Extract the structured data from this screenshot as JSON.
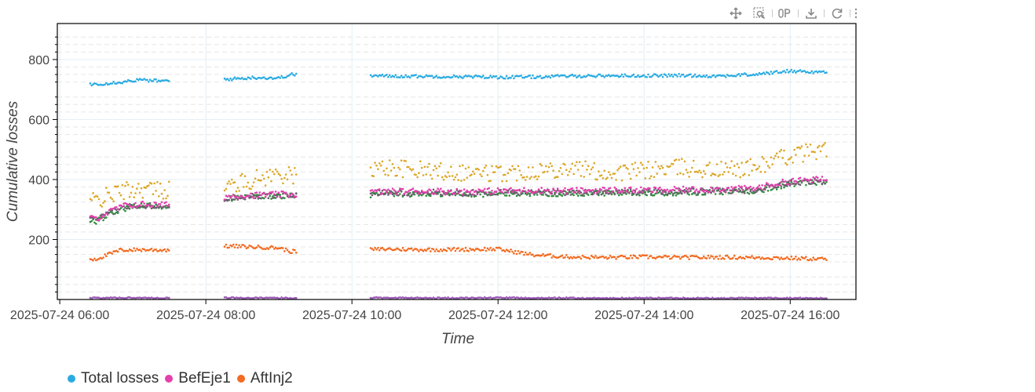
{
  "toolbar": {
    "tools": [
      {
        "icon": "pan-icon"
      },
      {
        "icon": "box-zoom-icon",
        "active": true
      },
      {
        "icon": "hover-icon"
      },
      {
        "icon": "save-icon"
      },
      {
        "icon": "reset-icon"
      },
      {
        "icon": "more-icon"
      }
    ]
  },
  "chart_data": {
    "type": "scatter",
    "xlabel": "Time",
    "ylabel": "Cumulative losses",
    "x_ticks": [
      "2025-07-24 06:00",
      "2025-07-24 08:00",
      "2025-07-24 10:00",
      "2025-07-24 12:00",
      "2025-07-24 14:00",
      "2025-07-24 16:00"
    ],
    "y_ticks": [
      200,
      400,
      600,
      800
    ],
    "xlim": [
      "2025-07-24 05:58",
      "2025-07-24 16:54"
    ],
    "ylim": [
      0,
      920
    ],
    "grid": true,
    "legend_position": "bottom-left",
    "series": [
      {
        "name": "Total losses",
        "color": "#29abe2",
        "points": [
          [
            "06:30",
            718
          ],
          [
            "06:50",
            725
          ],
          [
            "07:05",
            732
          ],
          [
            "07:25",
            728
          ],
          [
            "08:20",
            735
          ],
          [
            "08:40",
            740
          ],
          [
            "09:00",
            738
          ],
          [
            "09:10",
            750
          ],
          [
            "10:30",
            745
          ],
          [
            "11:00",
            744
          ],
          [
            "11:30",
            743
          ],
          [
            "12:00",
            741
          ],
          [
            "12:30",
            742
          ],
          [
            "13:00",
            745
          ],
          [
            "13:30",
            746
          ],
          [
            "14:00",
            746
          ],
          [
            "14:30",
            747
          ],
          [
            "15:00",
            745
          ],
          [
            "15:30",
            750
          ],
          [
            "16:00",
            762
          ],
          [
            "16:25",
            758
          ]
        ]
      },
      {
        "name": "BefEje1",
        "color": "#e43fad",
        "points": [
          [
            "06:30",
            270
          ],
          [
            "06:50",
            310
          ],
          [
            "07:05",
            318
          ],
          [
            "07:25",
            315
          ],
          [
            "08:20",
            345
          ],
          [
            "08:40",
            348
          ],
          [
            "09:00",
            350
          ],
          [
            "10:30",
            360
          ],
          [
            "11:00",
            362
          ],
          [
            "11:30",
            360
          ],
          [
            "12:00",
            362
          ],
          [
            "12:30",
            364
          ],
          [
            "13:00",
            362
          ],
          [
            "13:30",
            365
          ],
          [
            "14:00",
            364
          ],
          [
            "14:30",
            366
          ],
          [
            "15:00",
            368
          ],
          [
            "15:30",
            370
          ],
          [
            "16:00",
            395
          ],
          [
            "16:25",
            400
          ]
        ]
      },
      {
        "name": "AftInj2",
        "color": "#f26b21",
        "points": [
          [
            "06:30",
            135
          ],
          [
            "06:50",
            165
          ],
          [
            "07:05",
            166
          ],
          [
            "07:25",
            165
          ],
          [
            "08:20",
            178
          ],
          [
            "08:40",
            175
          ],
          [
            "09:00",
            172
          ],
          [
            "09:10",
            160
          ],
          [
            "10:30",
            168
          ],
          [
            "11:00",
            166
          ],
          [
            "11:30",
            167
          ],
          [
            "12:00",
            168
          ],
          [
            "12:30",
            148
          ],
          [
            "13:00",
            142
          ],
          [
            "13:30",
            140
          ],
          [
            "14:00",
            142
          ],
          [
            "14:30",
            140
          ],
          [
            "15:00",
            141
          ],
          [
            "15:30",
            140
          ],
          [
            "16:00",
            138
          ],
          [
            "16:25",
            135
          ]
        ]
      }
    ],
    "unlabeled_series": [
      {
        "color": "#dba727",
        "points": [
          [
            "06:30",
            330
          ],
          [
            "06:50",
            360
          ],
          [
            "07:05",
            370
          ],
          [
            "07:25",
            365
          ],
          [
            "08:20",
            380
          ],
          [
            "08:40",
            400
          ],
          [
            "09:00",
            420
          ],
          [
            "09:10",
            410
          ],
          [
            "10:30",
            440
          ],
          [
            "11:00",
            430
          ],
          [
            "11:30",
            425
          ],
          [
            "12:00",
            420
          ],
          [
            "12:30",
            430
          ],
          [
            "13:00",
            440
          ],
          [
            "13:30",
            420
          ],
          [
            "14:00",
            430
          ],
          [
            "14:30",
            440
          ],
          [
            "15:00",
            430
          ],
          [
            "15:30",
            440
          ],
          [
            "16:00",
            480
          ],
          [
            "16:25",
            500
          ]
        ]
      },
      {
        "color": "#2e8b3e",
        "points": [
          [
            "06:30",
            260
          ],
          [
            "06:50",
            300
          ],
          [
            "07:05",
            312
          ],
          [
            "07:25",
            310
          ],
          [
            "08:20",
            338
          ],
          [
            "08:40",
            342
          ],
          [
            "09:00",
            345
          ],
          [
            "10:30",
            350
          ],
          [
            "11:00",
            352
          ],
          [
            "11:30",
            350
          ],
          [
            "12:00",
            352
          ],
          [
            "12:30",
            354
          ],
          [
            "13:00",
            352
          ],
          [
            "13:30",
            355
          ],
          [
            "14:00",
            354
          ],
          [
            "14:30",
            356
          ],
          [
            "15:00",
            358
          ],
          [
            "15:30",
            360
          ],
          [
            "16:00",
            385
          ],
          [
            "16:25",
            392
          ]
        ]
      },
      {
        "color": "#6a5e6e",
        "points": [
          [
            "06:30",
            265
          ],
          [
            "06:50",
            305
          ],
          [
            "07:05",
            315
          ],
          [
            "07:25",
            312
          ],
          [
            "08:20",
            340
          ],
          [
            "08:40",
            345
          ],
          [
            "09:00",
            347
          ],
          [
            "10:30",
            355
          ],
          [
            "11:00",
            357
          ],
          [
            "11:30",
            355
          ],
          [
            "12:00",
            357
          ],
          [
            "12:30",
            359
          ],
          [
            "13:00",
            357
          ],
          [
            "13:30",
            360
          ],
          [
            "14:00",
            359
          ],
          [
            "14:30",
            361
          ],
          [
            "15:00",
            363
          ],
          [
            "15:30",
            365
          ],
          [
            "16:00",
            390
          ],
          [
            "16:25",
            396
          ]
        ]
      },
      {
        "color": "#9b59b6",
        "points": [
          [
            "06:30",
            5
          ],
          [
            "06:50",
            6
          ],
          [
            "07:05",
            6
          ],
          [
            "07:25",
            5
          ],
          [
            "08:20",
            6
          ],
          [
            "08:40",
            5
          ],
          [
            "09:00",
            5
          ],
          [
            "10:30",
            6
          ],
          [
            "11:00",
            5
          ],
          [
            "11:30",
            5
          ],
          [
            "12:00",
            6
          ],
          [
            "12:30",
            5
          ],
          [
            "13:00",
            5
          ],
          [
            "13:30",
            4
          ],
          [
            "14:00",
            5
          ],
          [
            "14:30",
            5
          ],
          [
            "15:00",
            4
          ],
          [
            "15:30",
            5
          ],
          [
            "16:00",
            5
          ],
          [
            "16:25",
            4
          ]
        ]
      }
    ]
  }
}
